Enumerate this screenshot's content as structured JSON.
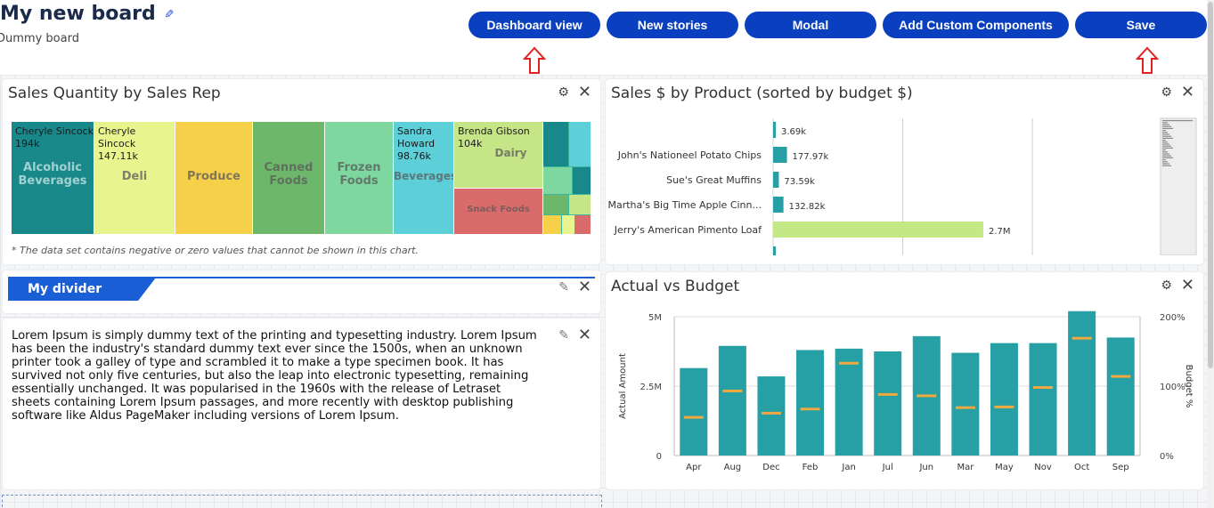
{
  "header": {
    "title": "My new board",
    "subtitle": "Dummy board",
    "buttons": [
      "Dashboard view",
      "New stories",
      "Modal",
      "Add Custom Components",
      "Save"
    ]
  },
  "cards": {
    "treemap": {
      "title": "Sales Quantity by Sales Rep",
      "footnote": "* The data set contains negative or zero values that cannot be shown in this chart.",
      "cells": [
        {
          "category": "Alcoholic Beverages",
          "rep": "Cheryle Sincock",
          "value": "194k",
          "color": "#19888a"
        },
        {
          "category": "Deli",
          "rep": "Cheryle Sincock",
          "value": "147.11k",
          "color": "#e8f58e"
        },
        {
          "category": "Produce",
          "rep": "",
          "value": "",
          "color": "#f7d04a"
        },
        {
          "category": "Canned Foods",
          "rep": "",
          "value": "",
          "color": "#6cb76a"
        },
        {
          "category": "Frozen Foods",
          "rep": "",
          "value": "",
          "color": "#7dd79e"
        },
        {
          "category": "Beverages",
          "rep": "Sandra Howard",
          "value": "98.76k",
          "color": "#5ccfd9"
        },
        {
          "category": "Dairy",
          "rep": "Brenda Gibson",
          "value": "104k",
          "color": "#c5e587"
        },
        {
          "category": "Snack Foods",
          "rep": "",
          "value": "",
          "color": "#d96b6b"
        }
      ]
    },
    "bar": {
      "title": "Sales $ by Product (sorted by budget $)"
    },
    "divider": {
      "label": "My divider"
    },
    "text": {
      "body": "Lorem Ipsum is simply dummy text of the printing and typesetting industry. Lorem Ipsum has been the industry's standard dummy text ever since the 1500s, when an unknown printer took a galley of type and scrambled it to make a type specimen book. It has survived not only five centuries, but also the leap into electronic typesetting, remaining essentially unchanged. It was popularised in the 1960s with the release of Letraset sheets containing Lorem Ipsum passages, and more recently with desktop publishing software like Aldus PageMaker including versions of Lorem Ipsum."
    },
    "combo": {
      "title": "Actual vs Budget"
    }
  },
  "colors": {
    "accent": "#0a3fbf",
    "teal": "#26a0a4",
    "lime": "#c5e887",
    "budget": "#f0a840"
  },
  "chart_data": [
    {
      "type": "bar",
      "orientation": "horizontal",
      "title": "Sales $ by Product (sorted by budget $)",
      "categories": [
        "",
        "John's Nationeel Potato Chips",
        "Sue's Great Muffins",
        "Martha's Big Time Apple Cinn...",
        "Jerry's American Pimento Loaf"
      ],
      "values": [
        3690,
        177970,
        73590,
        132820,
        2700000
      ],
      "value_labels": [
        "3.69k",
        "177.97k",
        "73.59k",
        "132.82k",
        "2.7M"
      ],
      "xlim": [
        0,
        5000000
      ]
    },
    {
      "type": "bar",
      "title": "Actual vs Budget",
      "categories": [
        "Apr",
        "Aug",
        "Dec",
        "Feb",
        "Jan",
        "Jul",
        "Jun",
        "Mar",
        "May",
        "Nov",
        "Oct",
        "Sep"
      ],
      "series": [
        {
          "name": "Actual Amount",
          "values": [
            3150000,
            3950000,
            2850000,
            3800000,
            3850000,
            3750000,
            4300000,
            3700000,
            4050000,
            4050000,
            5200000,
            4250000
          ]
        },
        {
          "name": "Budget %",
          "values": [
            55,
            93,
            61,
            67,
            133,
            88,
            86,
            69,
            70,
            98,
            169,
            114
          ]
        }
      ],
      "ylabel": "Actual Amount",
      "y2label": "Budget %",
      "ylim": [
        0,
        5000000
      ],
      "y2lim": [
        0,
        200
      ],
      "yticks": [
        "0",
        "2.5M",
        "5M"
      ],
      "y2ticks": [
        "0%",
        "100%",
        "200%"
      ]
    }
  ]
}
